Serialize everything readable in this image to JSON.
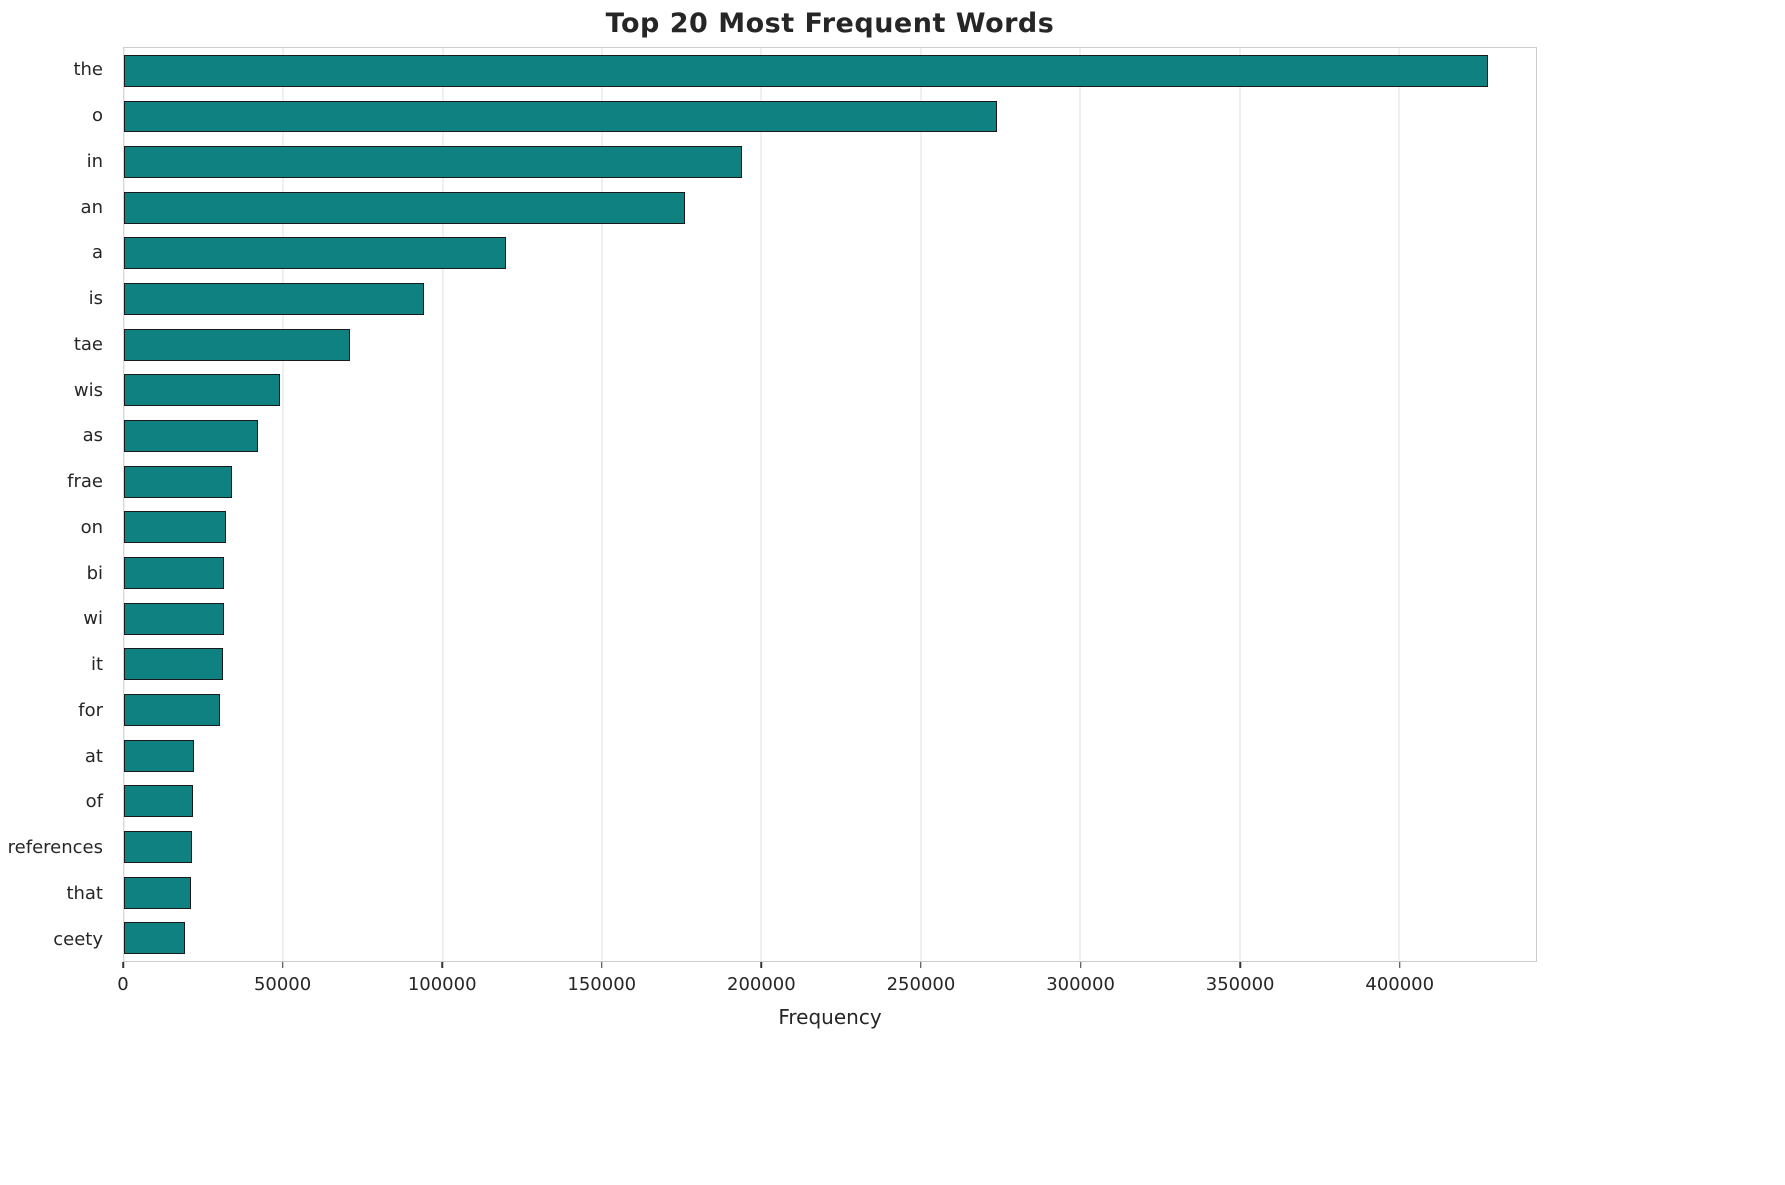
{
  "chart_data": {
    "type": "bar",
    "orientation": "horizontal",
    "title": "Top 20 Most Frequent Words",
    "xlabel": "Frequency",
    "ylabel": "",
    "categories": [
      "the",
      "o",
      "in",
      "an",
      "a",
      "is",
      "tae",
      "wis",
      "as",
      "frae",
      "on",
      "bi",
      "wi",
      "it",
      "for",
      "at",
      "of",
      "references",
      "that",
      "ceety"
    ],
    "values": [
      428000,
      274000,
      194000,
      176000,
      120000,
      94000,
      71000,
      49000,
      42000,
      34000,
      32000,
      31500,
      31500,
      31000,
      30000,
      22000,
      21500,
      21200,
      21000,
      19000
    ],
    "xlim": [
      0,
      443000
    ],
    "xticks": [
      0,
      50000,
      100000,
      150000,
      200000,
      250000,
      300000,
      350000,
      400000
    ],
    "grid": "vertical",
    "legend": "none",
    "bar_color": "#0f8181",
    "bar_edge_color": "#1a1a1a",
    "grid_color": "#e2e2e2",
    "spine_color": "#cccccc",
    "text_color": "#262626"
  }
}
